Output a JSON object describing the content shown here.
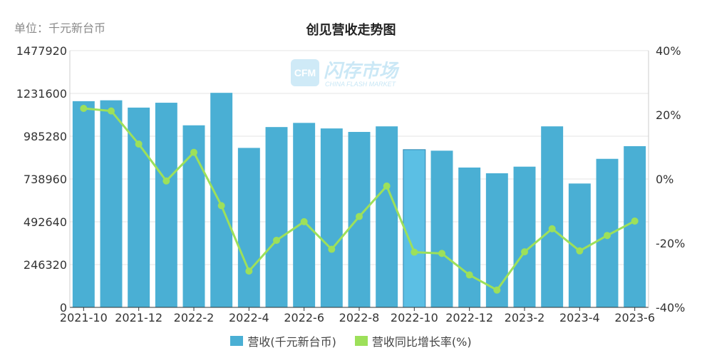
{
  "unit_label": "单位：千元新台币",
  "watermark": {
    "brand": "闪存市场",
    "sub": "CHINA FLASH MARKET",
    "logo": "CFM"
  },
  "colors": {
    "bar": "#4aafd4",
    "bar_highlight": "#5bbfe4",
    "line": "#9de05a",
    "grid": "#e6e6e6",
    "axis": "#333333"
  },
  "legend": [
    {
      "label": "营收(千元新台币)",
      "color": "#4aafd4"
    },
    {
      "label": "营收同比增长率(%)",
      "color": "#9de05a"
    }
  ],
  "chart_data": {
    "type": "bar",
    "title": "创见营收走势图",
    "categories": [
      "2021-10",
      "2021-11",
      "2021-12",
      "2022-1",
      "2022-2",
      "2022-3",
      "2022-4",
      "2022-5",
      "2022-6",
      "2022-7",
      "2022-8",
      "2022-9",
      "2022-10",
      "2022-11",
      "2022-12",
      "2023-1",
      "2023-2",
      "2023-3",
      "2023-4",
      "2023-5",
      "2023-6"
    ],
    "x_tick_labels": [
      "2021-10",
      "2021-12",
      "2022-2",
      "2022-4",
      "2022-6",
      "2022-8",
      "2022-10",
      "2022-12",
      "2023-2",
      "2023-4",
      "2023-6"
    ],
    "y_left": {
      "min": 0,
      "max": 1477920,
      "ticks": [
        "0",
        "246320",
        "492640",
        "738960",
        "985280",
        "1231600",
        "1477920"
      ]
    },
    "y_right": {
      "min": -40,
      "max": 40,
      "ticks": [
        "-40%",
        "-20%",
        "0%",
        "20%",
        "40%"
      ]
    },
    "grid": true,
    "legend_position": "bottom",
    "highlight_index": 12,
    "series": [
      {
        "name": "营收(千元新台币)",
        "type": "bar",
        "axis": "left",
        "values": [
          1187000,
          1192000,
          1150000,
          1178000,
          1048000,
          1235000,
          918000,
          1038000,
          1062000,
          1030000,
          1010000,
          1042000,
          908000,
          902000,
          805000,
          772000,
          810000,
          1042000,
          713000,
          855000,
          928000
        ]
      },
      {
        "name": "营收同比增长率(%)",
        "type": "line",
        "axis": "right",
        "values": [
          22.0,
          21.2,
          10.9,
          -0.6,
          8.3,
          -8.3,
          -28.7,
          -19.1,
          -13.3,
          -21.9,
          -11.7,
          -2.2,
          -22.8,
          -23.2,
          -29.9,
          -34.6,
          -22.7,
          -15.5,
          -22.4,
          -17.6,
          -13.1
        ]
      }
    ]
  }
}
